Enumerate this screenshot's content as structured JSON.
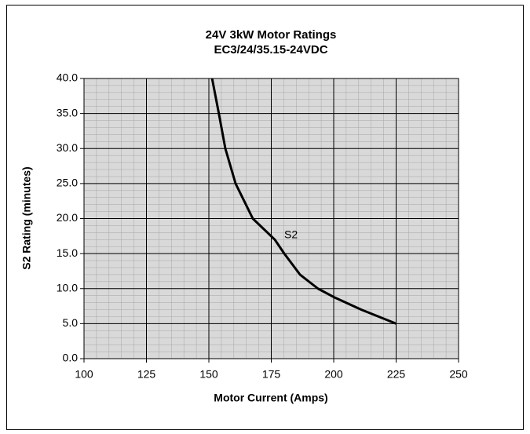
{
  "chart_data": {
    "type": "line",
    "title": [
      "24V 3kW Motor Ratings",
      "EC3/24/35.15-24VDC"
    ],
    "xlabel": "Motor Current (Amps)",
    "ylabel": "S2 Rating (minutes)",
    "x": [
      151.3,
      154,
      156.6,
      160.7,
      167.6,
      176.4,
      180.2,
      186.5,
      193.7,
      200,
      211,
      225
    ],
    "series": [
      {
        "name": "S2",
        "color": "#000000",
        "values": [
          40,
          35,
          30,
          25,
          20,
          17,
          15,
          12,
          10,
          8.8,
          7,
          5
        ]
      }
    ],
    "xlim": [
      100,
      250
    ],
    "xticks": [
      100,
      125,
      150,
      175,
      200,
      225,
      250
    ],
    "ylim": [
      0,
      40
    ],
    "yticks": [
      {
        "value": 0,
        "label": "0.0"
      },
      {
        "value": 5,
        "label": "5.0"
      },
      {
        "value": 10,
        "label": "10.0"
      },
      {
        "value": 15,
        "label": "15.0"
      },
      {
        "value": 20,
        "label": "20.0"
      },
      {
        "value": 25,
        "label": "25.0"
      },
      {
        "value": 30,
        "label": "30.0"
      },
      {
        "value": 35,
        "label": "35.0"
      },
      {
        "value": 40,
        "label": "40.0"
      }
    ],
    "grid": true,
    "minor_xstep": 5,
    "minor_ystep": 1,
    "plot_background": "#d9d9d9"
  }
}
